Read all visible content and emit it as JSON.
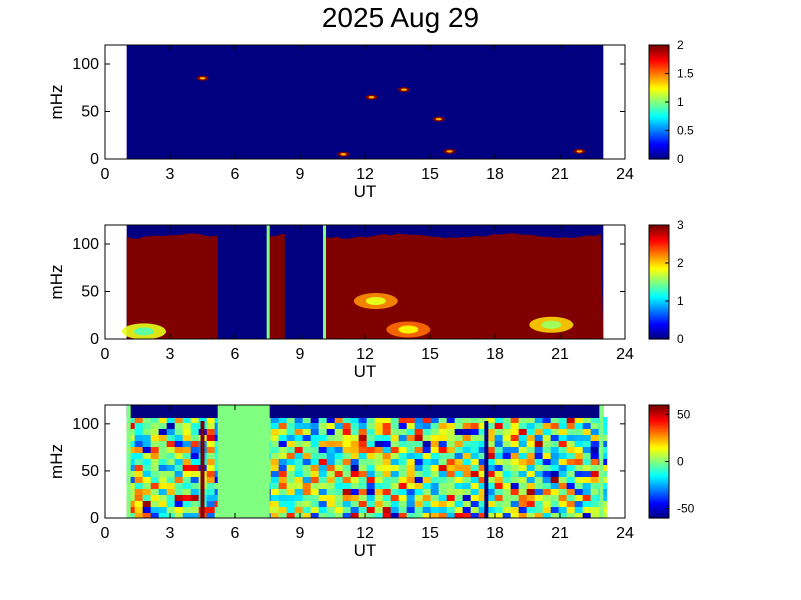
{
  "title": "2025 Aug 29",
  "panels": [
    {
      "id": "panel-1",
      "type": "heatmap",
      "xlabel": "UT",
      "ylabel": "mHz",
      "xlim": [
        0,
        24
      ],
      "ylim": [
        0,
        120
      ],
      "xticks": [
        "0",
        "3",
        "6",
        "9",
        "12",
        "15",
        "18",
        "21",
        "24"
      ],
      "yticks": [
        "0",
        "50",
        "100"
      ],
      "colorbar": {
        "min": 0,
        "max": 2,
        "ticks": [
          "0",
          "0.5",
          "1",
          "1.5",
          "2"
        ]
      },
      "data_window_ut": [
        1.0,
        23.0
      ],
      "background_value": 0,
      "features": [
        {
          "ut": 4.5,
          "mhz": 85,
          "value": 2
        },
        {
          "ut": 12.3,
          "mhz": 65,
          "value": 2
        },
        {
          "ut": 13.8,
          "mhz": 73,
          "value": 2
        },
        {
          "ut": 15.4,
          "mhz": 42,
          "value": 2
        },
        {
          "ut": 15.9,
          "mhz": 8,
          "value": 2
        },
        {
          "ut": 11.0,
          "mhz": 5,
          "value": 2
        },
        {
          "ut": 21.9,
          "mhz": 8,
          "value": 2
        }
      ]
    },
    {
      "id": "panel-2",
      "type": "heatmap",
      "xlabel": "UT",
      "ylabel": "mHz",
      "xlim": [
        0,
        24
      ],
      "ylim": [
        0,
        120
      ],
      "xticks": [
        "0",
        "3",
        "6",
        "9",
        "12",
        "15",
        "18",
        "21",
        "24"
      ],
      "yticks": [
        "0",
        "50",
        "100"
      ],
      "colorbar": {
        "min": 0,
        "max": 3,
        "ticks": [
          "0",
          "1",
          "2",
          "3"
        ]
      },
      "data_window_ut": [
        1.0,
        23.0
      ],
      "saturated_value": 3,
      "gaps_ut": [
        [
          5.2,
          7.6
        ],
        [
          8.3,
          10.2
        ]
      ],
      "features": [
        {
          "ut": 1.8,
          "mhz": 8,
          "value": 1.8
        },
        {
          "ut": 12.5,
          "mhz": 40,
          "value": 2.2
        },
        {
          "ut": 14.0,
          "mhz": 10,
          "value": 2.3
        },
        {
          "ut": 20.6,
          "mhz": 15,
          "value": 2.0
        }
      ]
    },
    {
      "id": "panel-3",
      "type": "heatmap",
      "xlabel": "UT",
      "ylabel": "mHz",
      "xlim": [
        0,
        24
      ],
      "ylim": [
        0,
        120
      ],
      "xticks": [
        "0",
        "3",
        "6",
        "9",
        "12",
        "15",
        "18",
        "21",
        "24"
      ],
      "yticks": [
        "0",
        "50",
        "100"
      ],
      "colorbar": {
        "min": -60,
        "max": 60,
        "ticks": [
          "50",
          "0",
          "-50"
        ]
      },
      "data_window_ut": [
        1.0,
        23.0
      ],
      "flat_gap_ut": [
        5.2,
        7.6
      ],
      "vertical_lines": [
        {
          "ut": 4.5,
          "value": 60
        },
        {
          "ut": 17.6,
          "value": -60
        }
      ]
    }
  ],
  "colors": {
    "jet_low": "#00008f",
    "jet_high": "#800000",
    "nodata": "#ffffff"
  }
}
